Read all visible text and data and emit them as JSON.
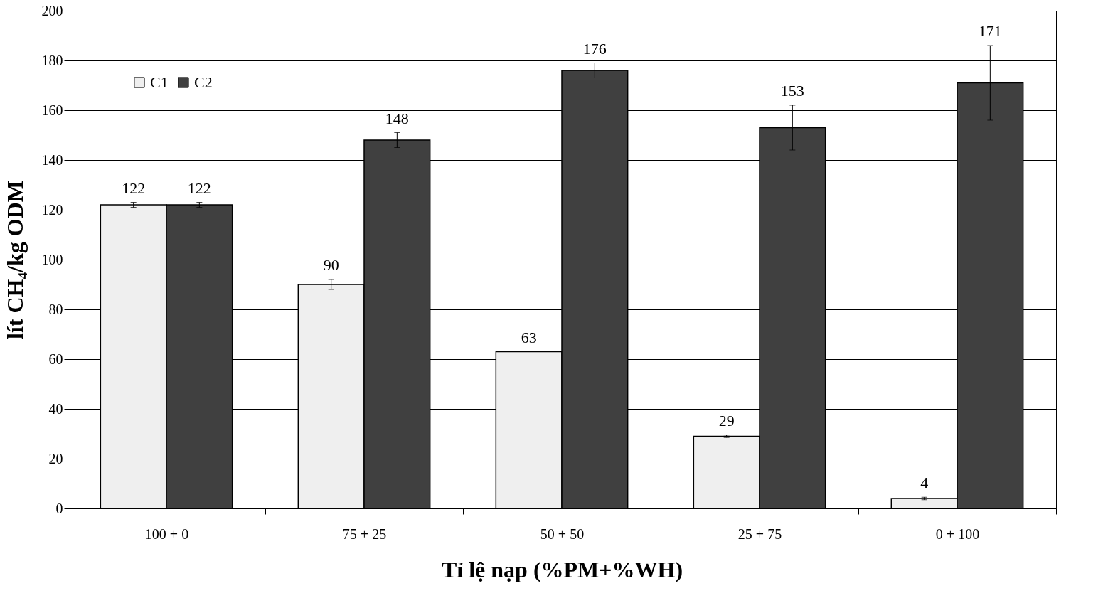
{
  "chart_data": {
    "type": "bar",
    "xlabel": "Tỉ lệ nạp (%PM+%WH)",
    "ylabel": "lít CH₄/kg ODM",
    "categories": [
      "100 + 0",
      "75 + 25",
      "50 + 50",
      "25 + 75",
      "0 + 100"
    ],
    "series": [
      {
        "name": "C1",
        "color": "#efefef",
        "values": [
          122,
          90,
          63,
          29,
          4
        ],
        "errors": [
          1,
          2,
          null,
          0.5,
          0.5
        ]
      },
      {
        "name": "C2",
        "color": "#404040",
        "values": [
          122,
          148,
          176,
          153,
          171
        ],
        "errors": [
          1,
          3,
          3,
          9,
          15
        ]
      }
    ],
    "ylim": [
      0,
      200
    ],
    "yticks": [
      0,
      20,
      40,
      60,
      80,
      100,
      120,
      140,
      160,
      180,
      200
    ],
    "grid": "y",
    "legend": "top left",
    "data_labels": true
  }
}
